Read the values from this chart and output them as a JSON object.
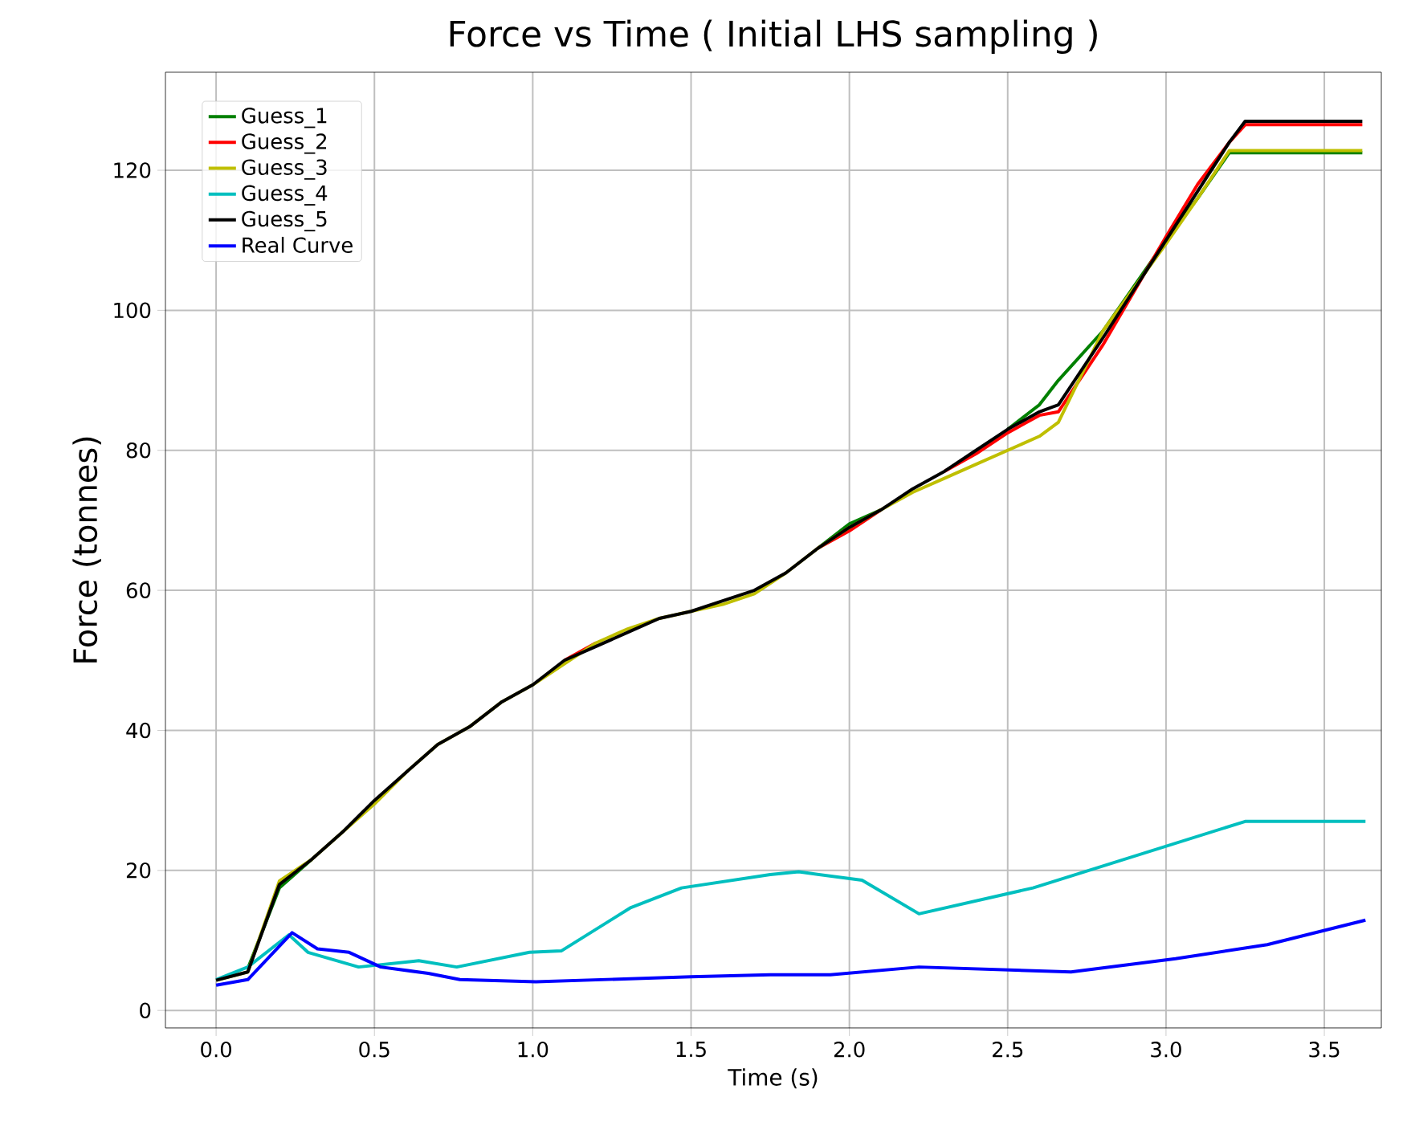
{
  "chart_data": {
    "type": "line",
    "title": "Force vs Time ( Initial LHS sampling )",
    "xlabel": "Time (s)",
    "ylabel": "Force (tonnes)",
    "xlim": [
      -0.16,
      3.68
    ],
    "ylim": [
      -2.5,
      134
    ],
    "xticks": [
      {
        "value": 0,
        "label": "0.0"
      },
      {
        "value": 0.5,
        "label": "0.5"
      },
      {
        "value": 1,
        "label": "1.0"
      },
      {
        "value": 1.5,
        "label": "1.5"
      },
      {
        "value": 2,
        "label": "2.0"
      },
      {
        "value": 2.5,
        "label": "2.5"
      },
      {
        "value": 3,
        "label": "3.0"
      },
      {
        "value": 3.5,
        "label": "3.5"
      }
    ],
    "yticks": [
      0,
      20,
      40,
      60,
      80,
      100,
      120
    ],
    "grid": true,
    "legend": "top left",
    "line_style": "solid",
    "marker": "none",
    "x": [
      0,
      0.1,
      0.2,
      0.3,
      0.4,
      0.5,
      0.6,
      0.7,
      0.8,
      0.9,
      1.0,
      1.1,
      1.2,
      1.3,
      1.4,
      1.5,
      1.6,
      1.7,
      1.8,
      1.9,
      2.0,
      2.1,
      2.2,
      2.3,
      2.4,
      2.5,
      2.6,
      2.66,
      2.8,
      3.0,
      3.1,
      3.2,
      3.25,
      3.62
    ],
    "series": [
      {
        "name": "Guess_1",
        "color": "#008000",
        "values": [
          null,
          6,
          17.5,
          21.5,
          null,
          null,
          null,
          null,
          null,
          null,
          null,
          null,
          null,
          null,
          null,
          null,
          null,
          null,
          null,
          66,
          69.5,
          71.5,
          null,
          null,
          null,
          83,
          86.5,
          90,
          97,
          110,
          116,
          122.5,
          122.5,
          122.5
        ]
      },
      {
        "name": "Guess_2",
        "color": "#ff0000",
        "values": [
          null,
          null,
          null,
          null,
          null,
          null,
          null,
          null,
          null,
          null,
          null,
          50,
          52.5,
          null,
          null,
          null,
          null,
          null,
          null,
          66,
          68.5,
          71.5,
          null,
          77,
          79.5,
          82.5,
          85,
          85.5,
          95,
          110.5,
          118,
          124,
          126.5,
          126.5
        ]
      },
      {
        "name": "Guess_3",
        "color": "#bfbf00",
        "values": [
          4.3,
          5.5,
          18.5,
          21.5,
          25.5,
          29.5,
          34,
          38,
          40.5,
          44,
          46.5,
          49.5,
          52.5,
          54.5,
          56,
          57,
          58,
          59.5,
          62.5,
          66,
          69,
          71.5,
          74,
          76,
          78,
          80,
          82,
          84,
          97,
          109.5,
          116,
          122.8,
          122.8,
          122.8
        ]
      },
      {
        "name": "Guess_4",
        "color": "#00bfbf",
        "x": [
          0,
          0.1,
          0.23,
          0.29,
          0.45,
          0.64,
          0.76,
          0.99,
          1.09,
          1.31,
          1.47,
          1.75,
          1.84,
          2.04,
          2.22,
          2.58,
          3.25,
          3.63
        ],
        "values": [
          4.4,
          6.2,
          10.8,
          8.3,
          6.2,
          7.1,
          6.2,
          8.3,
          8.5,
          14.7,
          17.5,
          19.4,
          19.8,
          18.6,
          13.8,
          17.5,
          27,
          27
        ]
      },
      {
        "name": "Guess_5",
        "color": "#000000",
        "values": [
          4.3,
          5.5,
          18,
          21.5,
          25.5,
          30,
          34,
          38,
          40.5,
          44,
          46.5,
          50,
          52,
          54,
          56,
          57,
          58.5,
          60,
          62.5,
          66,
          69,
          71.5,
          74.5,
          77,
          80,
          83,
          85.5,
          86.5,
          96,
          110,
          117,
          124,
          127,
          127
        ]
      },
      {
        "name": "Real Curve",
        "color": "#0000ff",
        "x": [
          0,
          0.1,
          0.24,
          0.32,
          0.42,
          0.52,
          0.67,
          0.77,
          1.01,
          1.5,
          1.75,
          1.94,
          2.22,
          2.7,
          3.03,
          3.32,
          3.63
        ],
        "values": [
          3.6,
          4.4,
          11.1,
          8.8,
          8.3,
          6.2,
          5.3,
          4.4,
          4.1,
          4.8,
          5.1,
          5.1,
          6.2,
          5.5,
          7.4,
          9.4,
          12.9
        ]
      }
    ]
  }
}
